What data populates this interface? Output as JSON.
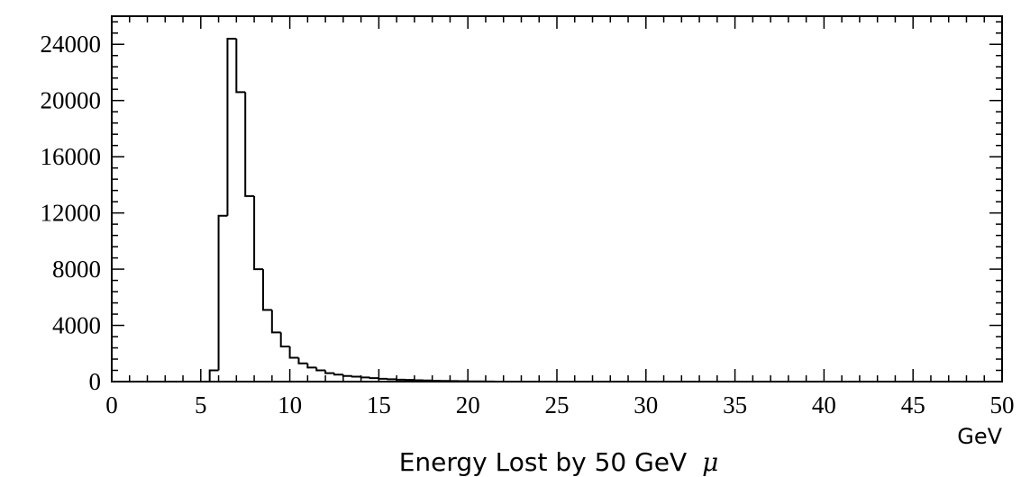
{
  "chart_data": {
    "type": "bar",
    "subtype": "step-histogram",
    "title": "",
    "xlabel": "Energy Lost by 50 GeV",
    "xlabel_symbol": "μ",
    "x_unit": "GeV",
    "ylabel": "",
    "xlim": [
      0,
      50
    ],
    "ylim": [
      0,
      26000
    ],
    "x_ticks": [
      "0",
      "5",
      "10",
      "15",
      "20",
      "25",
      "30",
      "35",
      "40",
      "45",
      "50"
    ],
    "y_ticks": [
      "0",
      "4000",
      "8000",
      "12000",
      "16000",
      "20000",
      "24000"
    ],
    "bin_width": 0.5,
    "bin_edges_start": 5.5,
    "values": [
      800,
      11800,
      24400,
      20600,
      13200,
      8000,
      5100,
      3500,
      2500,
      1700,
      1300,
      1000,
      800,
      600,
      500,
      400,
      350,
      300,
      250,
      200,
      170,
      140,
      120,
      100,
      80,
      60,
      50,
      40,
      30,
      20,
      15,
      10,
      0
    ],
    "grid": false,
    "legend": "none",
    "line_color": "#000000"
  }
}
